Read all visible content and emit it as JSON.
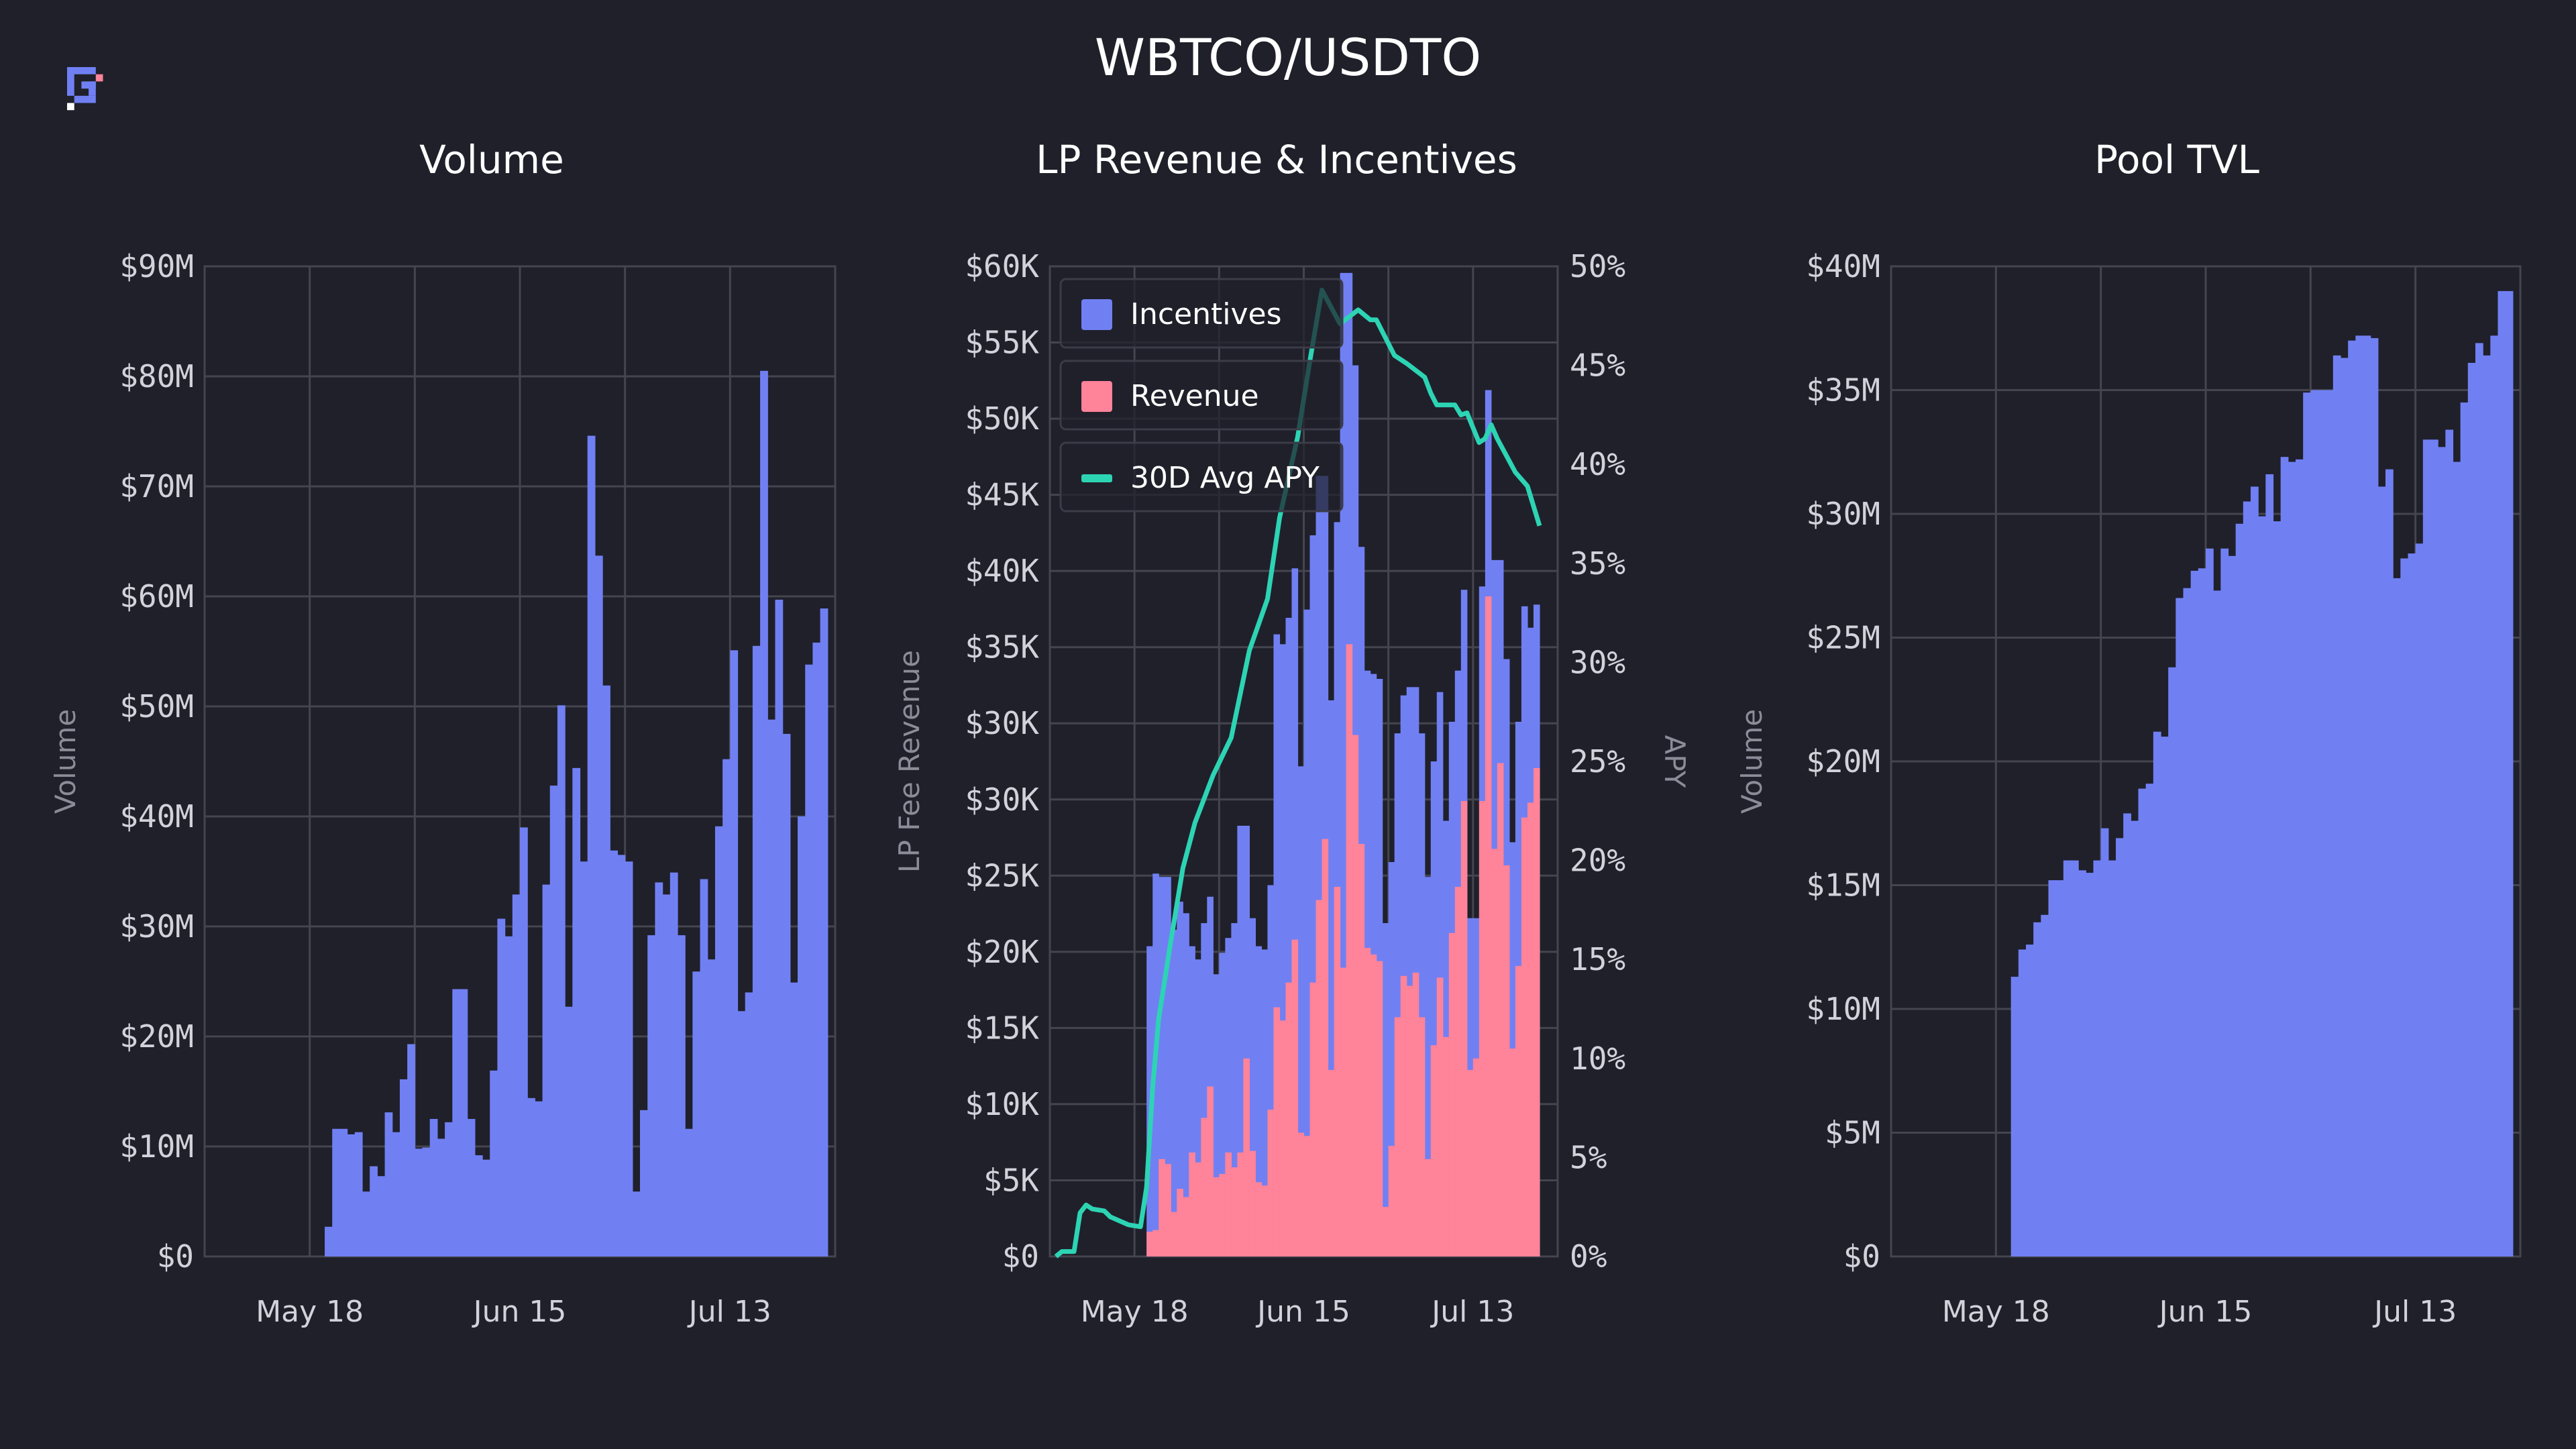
{
  "page_title": "WBTCO/USDTO",
  "colors": {
    "background": "#20202b",
    "grid": "#45454f",
    "volume": "#7080f3",
    "incentives": "#7080f3",
    "revenue": "#ff8399",
    "apy": "#2dd4b4",
    "logo_primary": "#7080f3",
    "logo_accent": "#ff8399",
    "logo_dot": "#ffffff"
  },
  "chart_data": [
    {
      "type": "bar",
      "title": "Volume",
      "ylabel": "Volume",
      "xlabel": "",
      "grid": true,
      "xlim": [
        "May 4",
        "Jul 27"
      ],
      "x_ticks": [
        "May 18",
        "Jun 15",
        "Jul 13"
      ],
      "ylim": [
        0,
        90
      ],
      "y_unit": "$M",
      "y_ticks": [
        "$0",
        "$10M",
        "$20M",
        "$30M",
        "$40M",
        "$50M",
        "$60M",
        "$70M",
        "$80M",
        "$90M"
      ],
      "x_start": "May 20",
      "values": [
        2.7,
        11.6,
        11.6,
        11.1,
        11.3,
        5.9,
        8.2,
        7.3,
        13.1,
        11.3,
        16.1,
        19.3,
        9.8,
        9.9,
        12.5,
        10.7,
        12.2,
        24.3,
        24.3,
        12.5,
        9.2,
        8.8,
        16.9,
        30.7,
        29.1,
        32.9,
        39.0,
        14.4,
        14.1,
        33.8,
        42.8,
        50.1,
        22.7,
        44.4,
        35.9,
        74.6,
        63.7,
        51.9,
        36.9,
        36.5,
        35.9,
        5.9,
        13.3,
        29.2,
        34.0,
        32.9,
        34.9,
        29.2,
        11.6,
        25.9,
        34.3,
        27.0,
        39.1,
        45.2,
        55.1,
        22.3,
        24.0,
        55.5,
        80.5,
        48.8,
        59.7,
        47.5,
        24.9,
        40.0,
        53.8,
        55.8,
        58.9
      ]
    },
    {
      "type": "bar+line",
      "title": "LP Revenue & Incentives",
      "ylabel": "LP Fee Revenue",
      "y2label": "APY",
      "grid": true,
      "legend": "top-left",
      "xlim": [
        "May 4",
        "Jul 27"
      ],
      "x_ticks": [
        "May 18",
        "Jun 15",
        "Jul 13"
      ],
      "ylim": [
        0,
        60
      ],
      "y_unit": "$K",
      "y_ticks": [
        "$0",
        "$5K",
        "$10K",
        "$15K",
        "$20K",
        "$25K",
        "$30K",
        "$30K",
        "$35K",
        "$40K",
        "$45K",
        "$50K",
        "$55K",
        "$60K"
      ],
      "y2lim": [
        0,
        50
      ],
      "y2_ticks": [
        "0%",
        "5%",
        "10%",
        "15%",
        "20%",
        "25%",
        "30%",
        "35%",
        "40%",
        "45%",
        "50%"
      ],
      "x_start": "May 20",
      "stacked": true,
      "series": [
        {
          "name": "Incentives",
          "kind": "bar",
          "total_values": [
            18.8,
            23.2,
            23.0,
            23.0,
            19.8,
            21.5,
            20.8,
            18.8,
            18.0,
            20.2,
            21.8,
            17.1,
            18.4,
            19.3,
            20.2,
            26.1,
            26.1,
            20.5,
            18.8,
            18.6,
            22.5,
            37.7,
            37.1,
            38.7,
            41.7,
            29.7,
            39.2,
            43.7,
            47.3,
            47.3,
            33.7,
            44.5,
            59.6,
            59.6,
            54.0,
            43.0,
            35.5,
            35.3,
            35.0,
            20.2,
            23.9,
            31.7,
            34.0,
            34.5,
            34.5,
            31.7,
            23.0,
            30.0,
            34.2,
            26.4,
            32.4,
            35.5,
            40.4,
            20.5,
            20.5,
            40.6,
            52.5,
            42.2,
            42.2,
            36.2,
            25.1,
            32.4,
            39.4,
            38.1,
            39.5
          ]
        },
        {
          "name": "Revenue",
          "kind": "bar",
          "values": [
            1.5,
            1.6,
            5.9,
            5.6,
            2.7,
            4.1,
            3.6,
            6.3,
            5.7,
            8.4,
            10.3,
            4.8,
            5.0,
            6.3,
            5.4,
            6.3,
            12.0,
            6.4,
            4.5,
            4.3,
            8.9,
            15.1,
            14.3,
            16.6,
            19.2,
            7.5,
            7.3,
            16.6,
            21.6,
            25.3,
            11.3,
            22.4,
            17.5,
            37.1,
            31.6,
            25.0,
            18.7,
            18.3,
            17.9,
            3.0,
            6.7,
            14.5,
            17.0,
            16.4,
            17.2,
            14.5,
            5.9,
            12.8,
            16.9,
            13.3,
            19.6,
            22.4,
            27.6,
            11.3,
            12.0,
            27.6,
            40.0,
            24.7,
            29.9,
            23.7,
            12.6,
            17.6,
            26.6,
            27.5,
            29.6
          ]
        },
        {
          "name": "30D Avg APY",
          "kind": "line",
          "axis": "y2",
          "points": [
            [
              "May 5",
              0
            ],
            [
              "May 6",
              0.25
            ],
            [
              "May 8",
              0.25
            ],
            [
              "May 9",
              2.2
            ],
            [
              "May 10",
              2.6
            ],
            [
              "May 11",
              2.4
            ],
            [
              "May 13",
              2.3
            ],
            [
              "May 14",
              2.0
            ],
            [
              "May 17",
              1.6
            ],
            [
              "May 19",
              1.5
            ],
            [
              "May 20",
              3.5
            ],
            [
              "May 21",
              8.5
            ],
            [
              "May 22",
              12.0
            ],
            [
              "May 24",
              15.9
            ],
            [
              "May 26",
              19.6
            ],
            [
              "May 28",
              21.9
            ],
            [
              "May 31",
              24.3
            ],
            [
              "Jun 3",
              26.2
            ],
            [
              "Jun 6",
              30.6
            ],
            [
              "Jun 9",
              33.2
            ],
            [
              "Jun 11",
              37.3
            ],
            [
              "Jun 14",
              41.4
            ],
            [
              "Jun 16",
              45.2
            ],
            [
              "Jun 18",
              48.8
            ],
            [
              "Jun 21",
              47.1
            ],
            [
              "Jun 24",
              47.8
            ],
            [
              "Jun 26",
              47.3
            ],
            [
              "Jun 27",
              47.3
            ],
            [
              "Jun 30",
              45.5
            ],
            [
              "Jul 2",
              45.1
            ],
            [
              "Jul 5",
              44.4
            ],
            [
              "Jul 6",
              43.6
            ],
            [
              "Jul 7",
              43.0
            ],
            [
              "Jul 10",
              43.0
            ],
            [
              "Jul 11",
              42.5
            ],
            [
              "Jul 12",
              42.6
            ],
            [
              "Jul 14",
              41.1
            ],
            [
              "Jul 15",
              41.3
            ],
            [
              "Jul 16",
              42.0
            ],
            [
              "Jul 17",
              41.3
            ],
            [
              "Jul 20",
              39.6
            ],
            [
              "Jul 22",
              38.9
            ],
            [
              "Jul 23",
              37.9
            ],
            [
              "Jul 24",
              36.9
            ]
          ]
        }
      ]
    },
    {
      "type": "bar",
      "title": "Pool TVL",
      "ylabel": "Volume",
      "xlabel": "",
      "grid": true,
      "xlim": [
        "May 4",
        "Jul 27"
      ],
      "x_ticks": [
        "May 18",
        "Jun 15",
        "Jul 13"
      ],
      "ylim": [
        0,
        40
      ],
      "y_unit": "$M",
      "y_ticks": [
        "$0",
        "$5M",
        "$10M",
        "$15M",
        "$20M",
        "$25M",
        "$30M",
        "$35M",
        "$40M"
      ],
      "x_start": "May 20",
      "values": [
        11.3,
        12.4,
        12.6,
        13.5,
        13.8,
        15.2,
        15.2,
        16.0,
        16.0,
        15.6,
        15.5,
        16.0,
        17.3,
        16.0,
        16.9,
        17.9,
        17.6,
        18.9,
        19.1,
        21.2,
        21.0,
        23.8,
        26.6,
        27.0,
        27.7,
        27.8,
        28.6,
        26.9,
        28.6,
        28.3,
        29.6,
        30.5,
        31.1,
        29.9,
        31.6,
        29.7,
        32.3,
        32.1,
        32.2,
        34.9,
        35.0,
        35.0,
        35.0,
        36.4,
        36.3,
        37.0,
        37.2,
        37.2,
        37.1,
        31.1,
        31.8,
        27.4,
        28.2,
        28.4,
        28.8,
        33.0,
        33.0,
        32.7,
        33.4,
        32.1,
        34.5,
        36.1,
        36.9,
        36.4,
        37.2,
        39.0,
        39.0
      ]
    }
  ]
}
